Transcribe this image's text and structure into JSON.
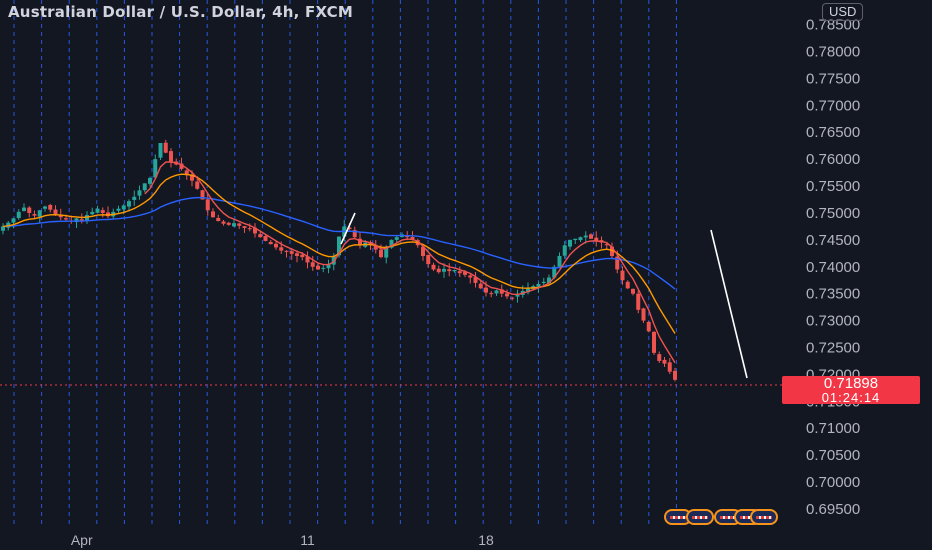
{
  "header": {
    "title": "Australian Dollar / U.S. Dollar, 4h, FXCM",
    "currency": "USD"
  },
  "last_price": {
    "value": "0.71898",
    "countdown": "01:24:14"
  },
  "colors": {
    "background": "#131722",
    "up": "#26a69a",
    "down": "#ef5350",
    "ema_fast": "#ef5350",
    "ema_mid": "#ff9800",
    "ema_slow": "#2962ff",
    "vertical_lines": "#2962ff",
    "trendline": "#ffffff"
  },
  "chart_data": {
    "type": "candlestick",
    "symbol": "AUDUSD",
    "timeframe": "4h",
    "ylim": [
      0.6935,
      0.7866
    ],
    "y_ticks": [
      "0.78500",
      "0.78000",
      "0.77500",
      "0.77000",
      "0.76500",
      "0.76000",
      "0.75500",
      "0.75000",
      "0.74500",
      "0.74000",
      "0.73500",
      "0.73000",
      "0.72500",
      "0.72000",
      "0.71500",
      "0.71000",
      "0.70500",
      "0.70000",
      "0.69500"
    ],
    "x_labels": [
      {
        "label": "Apr",
        "x_index": 15
      },
      {
        "label": "11",
        "x_index": 58
      },
      {
        "label": "18",
        "x_index": 92
      }
    ],
    "close_path": [
      0.7475,
      0.7482,
      0.749,
      0.7502,
      0.751,
      0.75,
      0.7495,
      0.7505,
      0.7512,
      0.7506,
      0.7498,
      0.7492,
      0.7488,
      0.7484,
      0.749,
      0.7486,
      0.7496,
      0.7502,
      0.7508,
      0.75,
      0.7494,
      0.7502,
      0.7508,
      0.7514,
      0.7522,
      0.753,
      0.7542,
      0.7555,
      0.7565,
      0.76,
      0.763,
      0.7612,
      0.7595,
      0.759,
      0.7582,
      0.757,
      0.756,
      0.7545,
      0.7525,
      0.7505,
      0.7492,
      0.7485,
      0.748,
      0.7478,
      0.7481,
      0.7476,
      0.7472,
      0.747,
      0.7462,
      0.7455,
      0.7448,
      0.7442,
      0.7436,
      0.743,
      0.7428,
      0.7424,
      0.742,
      0.7418,
      0.7408,
      0.74,
      0.7395,
      0.7398,
      0.7404,
      0.742,
      0.7456,
      0.7475,
      0.747,
      0.7455,
      0.744,
      0.7445,
      0.744,
      0.7432,
      0.7418,
      0.7435,
      0.745,
      0.7455,
      0.746,
      0.7455,
      0.745,
      0.744,
      0.742,
      0.7405,
      0.7395,
      0.739,
      0.7396,
      0.7392,
      0.7394,
      0.7388,
      0.7385,
      0.738,
      0.737,
      0.736,
      0.7352,
      0.735,
      0.7356,
      0.735,
      0.7345,
      0.7342,
      0.7348,
      0.7355,
      0.736,
      0.7364,
      0.7368,
      0.7372,
      0.738,
      0.74,
      0.742,
      0.744,
      0.745,
      0.7452,
      0.7455,
      0.7458,
      0.7452,
      0.7448,
      0.7445,
      0.744,
      0.742,
      0.7395,
      0.7375,
      0.736,
      0.735,
      0.732,
      0.73,
      0.728,
      0.724,
      0.7225,
      0.722,
      0.7205,
      0.719
    ],
    "close_path_note": "approximate closing prices of each 4h candle, oldest to newest",
    "ema_fast_last": 0.7235,
    "ema_mid_last": 0.7325,
    "ema_slow_last": 0.7388
  }
}
